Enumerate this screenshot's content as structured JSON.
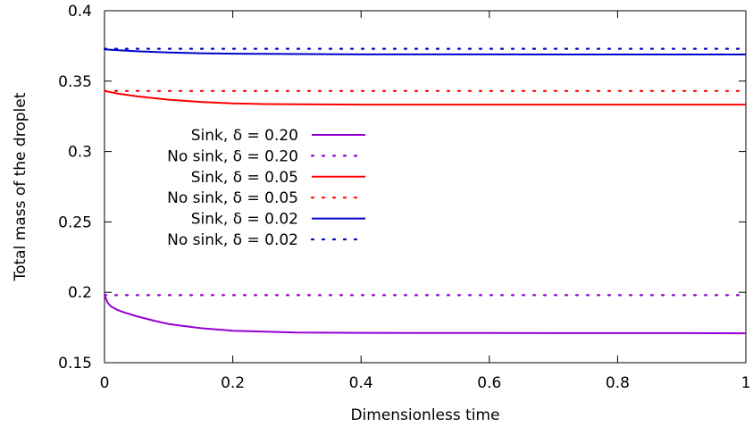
{
  "chart_data": {
    "type": "line",
    "xlabel": "Dimensionless time",
    "ylabel": "Total mass of the droplet",
    "xlim": [
      0,
      1
    ],
    "ylim": [
      0.15,
      0.4
    ],
    "xticks": [
      0,
      0.2,
      0.4,
      0.6,
      0.8,
      1
    ],
    "xtick_labels": [
      "0",
      "0.2",
      "0.4",
      "0.6",
      "0.8",
      "1"
    ],
    "yticks": [
      0.15,
      0.2,
      0.25,
      0.3,
      0.35,
      0.4
    ],
    "ytick_labels": [
      "0.15",
      "0.2",
      "0.25",
      "0.3",
      "0.35",
      "0.4"
    ],
    "grid": false,
    "legend_position": "center-left",
    "series": [
      {
        "name": "Sink, δ = 0.20",
        "color": "#9400d3",
        "style": "solid",
        "x": [
          0,
          0.005,
          0.01,
          0.02,
          0.03,
          0.05,
          0.08,
          0.1,
          0.15,
          0.2,
          0.25,
          0.3,
          0.4,
          0.5,
          0.6,
          0.7,
          0.8,
          0.9,
          1.0
        ],
        "y": [
          0.198,
          0.1925,
          0.19,
          0.1875,
          0.1858,
          0.183,
          0.1795,
          0.1775,
          0.1745,
          0.1727,
          0.172,
          0.1714,
          0.1712,
          0.1711,
          0.1711,
          0.171,
          0.171,
          0.171,
          0.1709
        ]
      },
      {
        "name": "No sink, δ = 0.20",
        "color": "#9400d3",
        "style": "dotted",
        "x": [
          0,
          1
        ],
        "y": [
          0.198,
          0.198
        ]
      },
      {
        "name": "Sink, δ = 0.05",
        "color": "#ff0000",
        "style": "solid",
        "x": [
          0,
          0.02,
          0.05,
          0.1,
          0.15,
          0.2,
          0.25,
          0.3,
          0.4,
          0.5,
          0.6,
          0.7,
          0.8,
          0.9,
          1.0
        ],
        "y": [
          0.343,
          0.3412,
          0.3392,
          0.3368,
          0.3352,
          0.3342,
          0.3337,
          0.3335,
          0.3333,
          0.3333,
          0.3333,
          0.3333,
          0.3333,
          0.3333,
          0.3333
        ]
      },
      {
        "name": "No sink, δ = 0.05",
        "color": "#ff0000",
        "style": "dotted",
        "x": [
          0,
          1
        ],
        "y": [
          0.343,
          0.343
        ]
      },
      {
        "name": "Sink, δ = 0.02",
        "color": "#0000cd",
        "style": "solid",
        "x": [
          0,
          0.05,
          0.1,
          0.15,
          0.2,
          0.3,
          0.4,
          0.5,
          0.6,
          0.7,
          0.8,
          0.9,
          1.0
        ],
        "y": [
          0.3725,
          0.3712,
          0.3703,
          0.3698,
          0.3695,
          0.3692,
          0.369,
          0.369,
          0.369,
          0.3689,
          0.3689,
          0.3689,
          0.3689
        ]
      },
      {
        "name": "No sink, δ = 0.02",
        "color": "#0000cd",
        "style": "dotted",
        "x": [
          0,
          1
        ],
        "y": [
          0.373,
          0.373
        ]
      }
    ]
  }
}
